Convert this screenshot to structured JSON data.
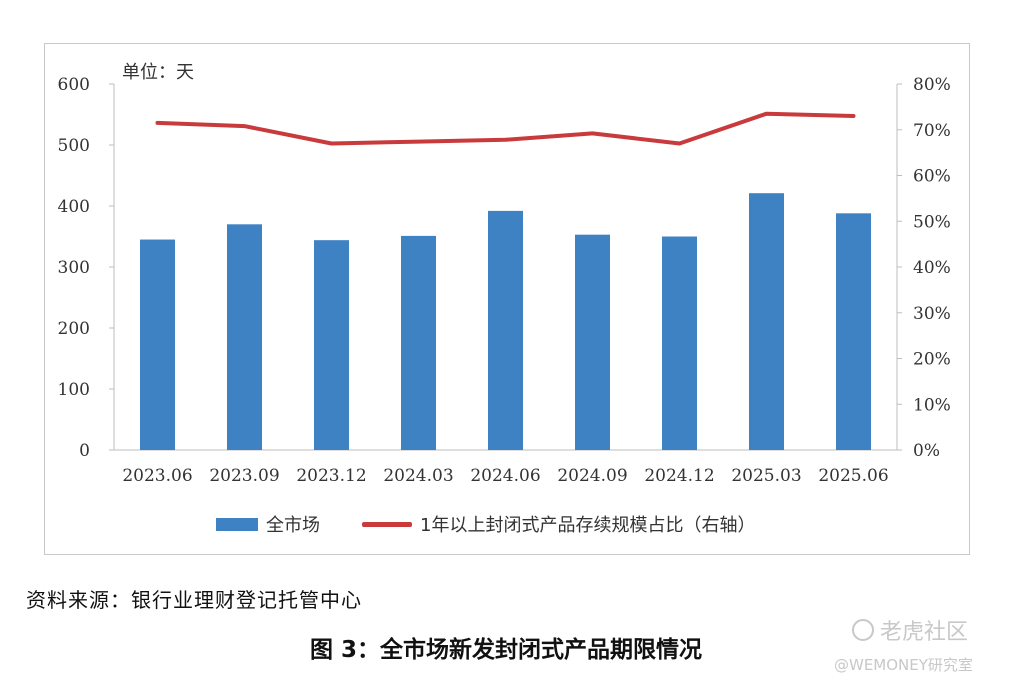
{
  "chart_data": {
    "type": "bar",
    "unit_label": "单位：天",
    "categories": [
      "2023.06",
      "2023.09",
      "2023.12",
      "2024.03",
      "2024.06",
      "2024.09",
      "2024.12",
      "2025.03",
      "2025.06"
    ],
    "series": [
      {
        "name": "全市场",
        "type": "bar",
        "axis": "left",
        "color": "#3f82c4",
        "values": [
          345,
          370,
          344,
          351,
          392,
          353,
          350,
          421,
          388
        ]
      },
      {
        "name": "1年以上封闭式产品存续规模占比（右轴）",
        "type": "line",
        "axis": "right",
        "color": "#c83a3c",
        "values": [
          71.5,
          70.8,
          67.0,
          67.4,
          67.8,
          69.2,
          67.0,
          73.5,
          73.0
        ]
      }
    ],
    "y_left": {
      "min": 0,
      "max": 600,
      "ticks": [
        "0",
        "100",
        "200",
        "300",
        "400",
        "500",
        "600"
      ]
    },
    "y_right": {
      "min": 0,
      "max": 80,
      "ticks": [
        "0%",
        "10%",
        "20%",
        "30%",
        "40%",
        "50%",
        "60%",
        "70%",
        "80%"
      ]
    },
    "grid": false,
    "legend_position": "bottom"
  },
  "source": "资料来源：银行业理财登记托管中心",
  "caption": "图 3：全市场新发封闭式产品期限情况",
  "watermark": {
    "brand": "老虎社区",
    "handle": "@WEMONEY研究室"
  }
}
